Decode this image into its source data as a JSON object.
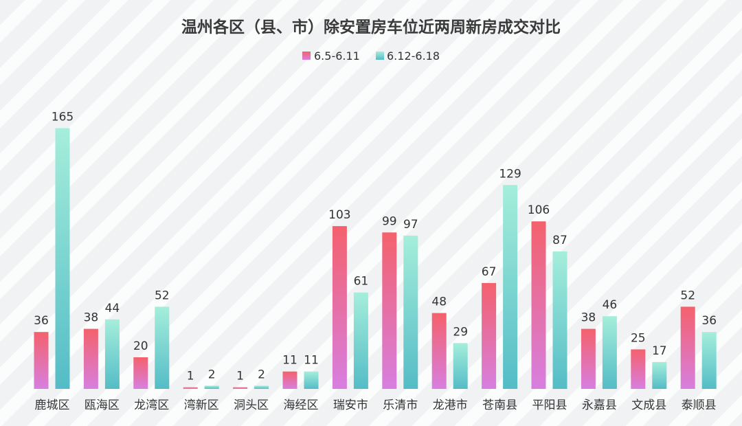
{
  "chart_data": {
    "type": "bar",
    "title": "温州各区（县、市）除安置房车位近两周新房成交对比",
    "categories": [
      "鹿城区",
      "瓯海区",
      "龙湾区",
      "湾新区",
      "洞头区",
      "海经区",
      "瑞安市",
      "乐清市",
      "龙港市",
      "苍南县",
      "平阳县",
      "永嘉县",
      "文成县",
      "泰顺县"
    ],
    "series": [
      {
        "name": "6.5-6.11",
        "values": [
          36,
          38,
          20,
          1,
          1,
          11,
          103,
          99,
          48,
          67,
          106,
          38,
          25,
          52
        ],
        "color_top": "#f4616c",
        "color_bottom": "#d77fe0"
      },
      {
        "name": "6.12-6.18",
        "values": [
          165,
          44,
          52,
          2,
          2,
          11,
          61,
          97,
          29,
          129,
          87,
          46,
          17,
          36
        ],
        "color_top": "#a5eedb",
        "color_bottom": "#54bcc6"
      }
    ],
    "ylim": [
      0,
      165
    ],
    "grid": false,
    "legend_position": "top-center"
  }
}
